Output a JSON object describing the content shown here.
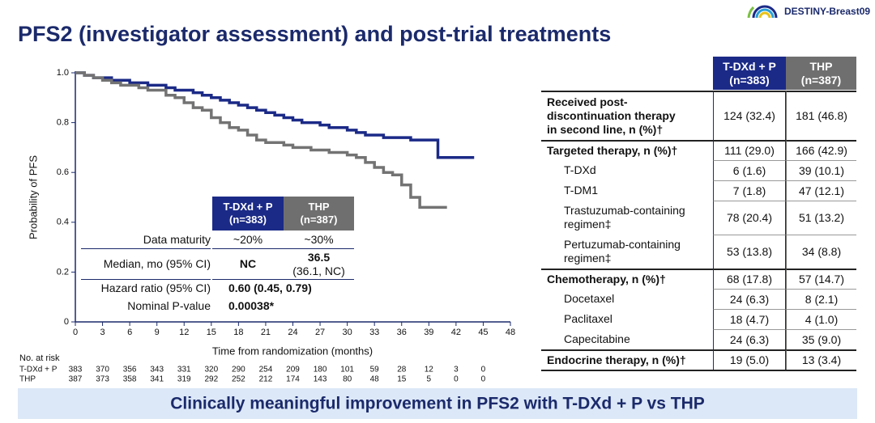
{
  "header": {
    "title": "PFS2 (investigator assessment) and post-trial treatments",
    "logo": "DESTINY-Breast09"
  },
  "chart_data": {
    "type": "line",
    "step": true,
    "xlabel": "Time from randomization (months)",
    "ylabel": "Probability of PFS",
    "xlim": [
      0,
      48
    ],
    "xticks": [
      0,
      3,
      6,
      9,
      12,
      15,
      18,
      21,
      24,
      27,
      30,
      33,
      36,
      39,
      42,
      45,
      48
    ],
    "ylim": [
      0,
      1
    ],
    "yticks": [
      0,
      0.2,
      0.4,
      0.6,
      0.8,
      {
        "value": 1,
        "label": "1.0"
      }
    ],
    "x": [
      0,
      1,
      2,
      3,
      4,
      5,
      6,
      7,
      8,
      9,
      10,
      11,
      12,
      13,
      14,
      15,
      16,
      17,
      18,
      19,
      20,
      21,
      22,
      23,
      24,
      25,
      26,
      27,
      28,
      29,
      30,
      31,
      32,
      33,
      34,
      35,
      36,
      37,
      38,
      39,
      40,
      41,
      42,
      43,
      44
    ],
    "series": [
      {
        "name": "T-DXd + P",
        "color": "#1b2a87",
        "values": [
          1.0,
          0.99,
          0.98,
          0.98,
          0.97,
          0.97,
          0.96,
          0.96,
          0.95,
          0.95,
          0.94,
          0.93,
          0.93,
          0.92,
          0.91,
          0.9,
          0.89,
          0.88,
          0.87,
          0.86,
          0.85,
          0.84,
          0.83,
          0.82,
          0.81,
          0.8,
          0.8,
          0.79,
          0.78,
          0.78,
          0.77,
          0.76,
          0.75,
          0.75,
          0.74,
          0.74,
          0.74,
          0.73,
          0.73,
          0.73,
          0.66,
          0.66,
          0.66,
          0.66,
          0.66
        ]
      },
      {
        "name": "THP",
        "color": "#737373",
        "values": [
          1.0,
          0.99,
          0.98,
          0.97,
          0.96,
          0.95,
          0.95,
          0.94,
          0.93,
          0.93,
          0.91,
          0.9,
          0.88,
          0.86,
          0.85,
          0.82,
          0.8,
          0.78,
          0.77,
          0.75,
          0.73,
          0.72,
          0.72,
          0.71,
          0.7,
          0.7,
          0.69,
          0.69,
          0.68,
          0.68,
          0.67,
          0.66,
          0.64,
          0.62,
          0.6,
          0.59,
          0.55,
          0.5,
          0.46,
          0.46,
          0.46,
          0.46,
          null,
          null,
          null
        ]
      }
    ]
  },
  "risk_table": {
    "title": "No. at risk",
    "rows": [
      {
        "label": "T-DXd + P",
        "values": [
          "383",
          "370",
          "356",
          "343",
          "331",
          "320",
          "290",
          "254",
          "209",
          "180",
          "101",
          "59",
          "28",
          "12",
          "3",
          "0"
        ]
      },
      {
        "label": "THP",
        "values": [
          "387",
          "373",
          "358",
          "341",
          "319",
          "292",
          "252",
          "212",
          "174",
          "143",
          "80",
          "48",
          "15",
          "5",
          "0",
          "0"
        ]
      }
    ]
  },
  "inset_table": {
    "columns": [
      [
        "T-DXd + P",
        "(n=383)"
      ],
      [
        "THP",
        "(n=387)"
      ]
    ],
    "rows": [
      {
        "label": "Data maturity",
        "cells": [
          [
            "~20%"
          ],
          [
            "~30%"
          ]
        ]
      },
      {
        "label": "Median, mo (95% CI)",
        "cells": [
          [
            "NC"
          ],
          [
            "36.5",
            "(36.1, NC)"
          ]
        ]
      },
      {
        "label": "Hazard ratio (95% CI)",
        "cells": [
          [
            "0.60 (0.45, 0.79)"
          ]
        ]
      },
      {
        "label": "Nominal P-value",
        "cells": [
          [
            "0.00038*"
          ]
        ]
      }
    ]
  },
  "treatment_table": {
    "columns": [
      [
        "T-DXd + P",
        "(n=383)"
      ],
      [
        "THP",
        "(n=387)"
      ]
    ],
    "rows": [
      {
        "label": [
          "Received post-",
          "discontinuation therapy",
          "in second line, n (%)†"
        ],
        "cells": [
          "124 (32.4)",
          "181 (46.8)"
        ],
        "bold": true
      },
      {
        "label": [
          "Targeted therapy, n (%)†"
        ],
        "cells": [
          "111 (29.0)",
          "166 (42.9)"
        ],
        "bold": true
      },
      {
        "label": [
          "T-DXd"
        ],
        "cells": [
          "6 (1.6)",
          "39 (10.1)"
        ],
        "bold": false
      },
      {
        "label": [
          "T-DM1"
        ],
        "cells": [
          "7 (1.8)",
          "47 (12.1)"
        ],
        "bold": false
      },
      {
        "label": [
          "Trastuzumab-containing",
          "regimen‡"
        ],
        "cells": [
          "78 (20.4)",
          "51 (13.2)"
        ],
        "bold": false
      },
      {
        "label": [
          "Pertuzumab-containing",
          "regimen‡"
        ],
        "cells": [
          "53 (13.8)",
          "34 (8.8)"
        ],
        "bold": false
      },
      {
        "label": [
          "Chemotherapy, n (%)†"
        ],
        "cells": [
          "68 (17.8)",
          "57 (14.7)"
        ],
        "bold": true
      },
      {
        "label": [
          "Docetaxel"
        ],
        "cells": [
          "24 (6.3)",
          "8 (2.1)"
        ],
        "bold": false
      },
      {
        "label": [
          "Paclitaxel"
        ],
        "cells": [
          "18 (4.7)",
          "4 (1.0)"
        ],
        "bold": false
      },
      {
        "label": [
          "Capecitabine"
        ],
        "cells": [
          "24 (6.3)",
          "35 (9.0)"
        ],
        "bold": false
      },
      {
        "label": [
          "Endocrine therapy, n (%)†"
        ],
        "cells": [
          "19 (5.0)",
          "13 (3.4)"
        ],
        "bold": true
      }
    ]
  },
  "footer": "Clinically meaningful improvement in PFS2 with T-DXd + P vs THP"
}
